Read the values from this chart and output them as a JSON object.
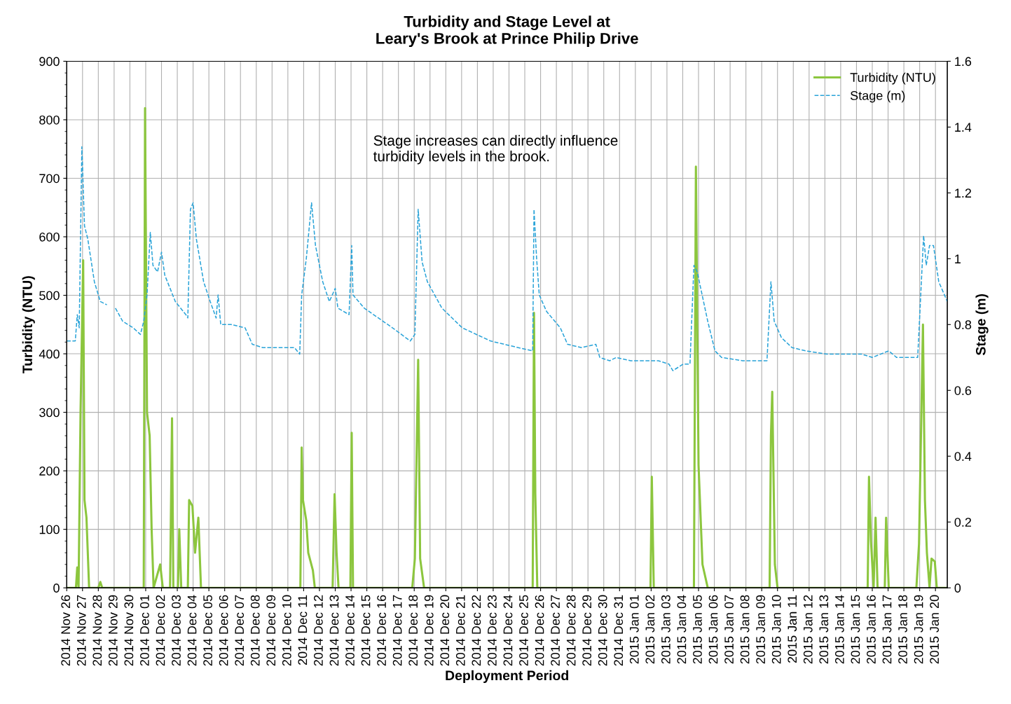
{
  "chart_data": {
    "type": "line",
    "title": "Turbidity and Stage Level at\nLeary's Brook at Prince Philip Drive",
    "xlabel": "Deployment Period",
    "ylabel": "Turbidity (NTU)",
    "y2label": "Stage (m)",
    "annotations": [
      "Stage increases can directly influence\nturbidity levels in the brook."
    ],
    "xlim": [
      "2014-11-26",
      "2015-01-20T18:00"
    ],
    "xticks": [
      {
        "value": "2014-11-26",
        "label": "2014 Nov 26"
      },
      {
        "value": "2014-11-27",
        "label": "2014 Nov 27"
      },
      {
        "value": "2014-11-28",
        "label": "2014 Nov 28"
      },
      {
        "value": "2014-11-29",
        "label": "2014 Nov 29"
      },
      {
        "value": "2014-11-30",
        "label": "2014 Nov 30"
      },
      {
        "value": "2014-12-01",
        "label": "2014 Dec 01"
      },
      {
        "value": "2014-12-02",
        "label": "2014 Dec 02"
      },
      {
        "value": "2014-12-03",
        "label": "2014 Dec 03"
      },
      {
        "value": "2014-12-04",
        "label": "2014 Dec 04"
      },
      {
        "value": "2014-12-05",
        "label": "2014 Dec 05"
      },
      {
        "value": "2014-12-06",
        "label": "2014 Dec 06"
      },
      {
        "value": "2014-12-07",
        "label": "2014 Dec 07"
      },
      {
        "value": "2014-12-08",
        "label": "2014 Dec 08"
      },
      {
        "value": "2014-12-09",
        "label": "2014 Dec 09"
      },
      {
        "value": "2014-12-10",
        "label": "2014 Dec 10"
      },
      {
        "value": "2014-12-11",
        "label": "2014 Dec 11"
      },
      {
        "value": "2014-12-12",
        "label": "2014 Dec 12"
      },
      {
        "value": "2014-12-13",
        "label": "2014 Dec 13"
      },
      {
        "value": "2014-12-14",
        "label": "2014 Dec 14"
      },
      {
        "value": "2014-12-15",
        "label": "2014 Dec 15"
      },
      {
        "value": "2014-12-16",
        "label": "2014 Dec 16"
      },
      {
        "value": "2014-12-17",
        "label": "2014 Dec 17"
      },
      {
        "value": "2014-12-18",
        "label": "2014 Dec 18"
      },
      {
        "value": "2014-12-19",
        "label": "2014 Dec 19"
      },
      {
        "value": "2014-12-20",
        "label": "2014 Dec 20"
      },
      {
        "value": "2014-12-21",
        "label": "2014 Dec 21"
      },
      {
        "value": "2014-12-22",
        "label": "2014 Dec 22"
      },
      {
        "value": "2014-12-23",
        "label": "2014 Dec 23"
      },
      {
        "value": "2014-12-24",
        "label": "2014 Dec 24"
      },
      {
        "value": "2014-12-25",
        "label": "2014 Dec 25"
      },
      {
        "value": "2014-12-26",
        "label": "2014 Dec 26"
      },
      {
        "value": "2014-12-27",
        "label": "2014 Dec 27"
      },
      {
        "value": "2014-12-28",
        "label": "2014 Dec 28"
      },
      {
        "value": "2014-12-29",
        "label": "2014 Dec 29"
      },
      {
        "value": "2014-12-30",
        "label": "2014 Dec 30"
      },
      {
        "value": "2014-12-31",
        "label": "2014 Dec 31"
      },
      {
        "value": "2015-01-01",
        "label": "2015 Jan 01"
      },
      {
        "value": "2015-01-02",
        "label": "2015 Jan 02"
      },
      {
        "value": "2015-01-03",
        "label": "2015 Jan 03"
      },
      {
        "value": "2015-01-04",
        "label": "2015 Jan 04"
      },
      {
        "value": "2015-01-05",
        "label": "2015 Jan 05"
      },
      {
        "value": "2015-01-06",
        "label": "2015 Jan 06"
      },
      {
        "value": "2015-01-07",
        "label": "2015 Jan 07"
      },
      {
        "value": "2015-01-08",
        "label": "2015 Jan 08"
      },
      {
        "value": "2015-01-09",
        "label": "2015 Jan 09"
      },
      {
        "value": "2015-01-10",
        "label": "2015 Jan 10"
      },
      {
        "value": "2015-01-11",
        "label": "2015 Jan 11"
      },
      {
        "value": "2015-01-12",
        "label": "2015 Jan 12"
      },
      {
        "value": "2015-01-13",
        "label": "2015 Jan 13"
      },
      {
        "value": "2015-01-14",
        "label": "2015 Jan 14"
      },
      {
        "value": "2015-01-15",
        "label": "2015 Jan 15"
      },
      {
        "value": "2015-01-16",
        "label": "2015 Jan 16"
      },
      {
        "value": "2015-01-17",
        "label": "2015 Jan 17"
      },
      {
        "value": "2015-01-18",
        "label": "2015 Jan 18"
      },
      {
        "value": "2015-01-19",
        "label": "2015 Jan 19"
      },
      {
        "value": "2015-01-20",
        "label": "2015 Jan 20"
      }
    ],
    "ylim": [
      0,
      900
    ],
    "yticks": [
      0,
      100,
      200,
      300,
      400,
      500,
      600,
      700,
      800,
      900
    ],
    "y2lim": [
      0,
      1.6
    ],
    "y2ticks": [
      0,
      0.2,
      0.4,
      0.6,
      0.8,
      1,
      1.2,
      1.4,
      1.6
    ],
    "grid": true,
    "legend": "top right",
    "series": [
      {
        "name": "Turbidity (NTU)",
        "color": "#8cc63e",
        "line_style": "solid",
        "x": [
          "2014-11-26T00:00",
          "2014-11-26T14:00",
          "2014-11-26T16:00",
          "2014-11-26T18:00",
          "2014-11-26T21:00",
          "2014-11-27T01:00",
          "2014-11-27T03:00",
          "2014-11-27T06:00",
          "2014-11-27T10:00",
          "2014-11-28T00:00",
          "2014-11-28T03:00",
          "2014-11-28T06:00",
          "2014-11-30T21:00",
          "2014-11-30T23:00",
          "2014-12-01T02:00",
          "2014-12-01T06:00",
          "2014-12-01T09:00",
          "2014-12-01T12:00",
          "2014-12-01T22:00",
          "2014-12-02T02:00",
          "2014-12-02T13:00",
          "2014-12-02T16:00",
          "2014-12-02T18:00",
          "2014-12-03T01:00",
          "2014-12-03T03:00",
          "2014-12-03T06:00",
          "2014-12-03T16:00",
          "2014-12-03T18:00",
          "2014-12-03T23:00",
          "2014-12-04T03:00",
          "2014-12-04T08:00",
          "2014-12-04T12:00",
          "2014-12-10T19:00",
          "2014-12-10T21:00",
          "2014-12-10T23:00",
          "2014-12-11T04:00",
          "2014-12-11T07:00",
          "2014-12-11T14:00",
          "2014-12-11T17:00",
          "2014-12-12T20:00",
          "2014-12-12T23:00",
          "2014-12-13T02:00",
          "2014-12-13T05:00",
          "2014-12-13T23:00",
          "2014-12-14T01:00",
          "2014-12-14T03:00",
          "2014-12-17T21:00",
          "2014-12-18T01:00",
          "2014-12-18T06:00",
          "2014-12-18T09:00",
          "2014-12-18T15:00",
          "2014-12-25T12:00",
          "2014-12-25T14:00",
          "2014-12-25T16:00",
          "2014-12-25T19:00",
          "2015-01-01T23:00",
          "2015-01-02T01:00",
          "2015-01-02T04:00",
          "2015-01-04T17:00",
          "2015-01-04T20:00",
          "2015-01-05T00:00",
          "2015-01-05T06:00",
          "2015-01-05T14:00",
          "2015-01-09T12:00",
          "2015-01-09T14:00",
          "2015-01-09T16:00",
          "2015-01-09T20:00",
          "2015-01-10T00:00",
          "2015-01-15T17:00",
          "2015-01-15T19:00",
          "2015-01-15T22:00",
          "2015-01-16T02:00",
          "2015-01-16T05:00",
          "2015-01-16T08:00",
          "2015-01-16T19:00",
          "2015-01-16T21:00",
          "2015-01-17T01:00",
          "2015-01-18T19:00",
          "2015-01-18T23:00",
          "2015-01-19T05:00",
          "2015-01-19T08:00",
          "2015-01-19T11:00",
          "2015-01-19T15:00",
          "2015-01-19T18:00",
          "2015-01-19T23:00",
          "2015-01-20T02:00",
          "2015-01-20T18:00"
        ],
        "values": [
          0,
          0,
          35,
          0,
          300,
          560,
          150,
          120,
          0,
          0,
          10,
          0,
          0,
          820,
          300,
          260,
          100,
          0,
          40,
          0,
          0,
          290,
          0,
          0,
          100,
          0,
          0,
          150,
          140,
          60,
          120,
          0,
          0,
          240,
          150,
          115,
          60,
          30,
          0,
          0,
          160,
          60,
          0,
          0,
          265,
          0,
          0,
          50,
          390,
          50,
          0,
          0,
          470,
          160,
          0,
          0,
          190,
          0,
          0,
          720,
          210,
          40,
          0,
          0,
          260,
          335,
          40,
          0,
          0,
          190,
          80,
          0,
          120,
          0,
          0,
          120,
          0,
          0,
          75,
          450,
          150,
          60,
          0,
          50,
          45,
          0,
          0
        ]
      },
      {
        "name": "Stage (m)",
        "color": "#29a3d8",
        "line_style": "dashed",
        "axis": "y2",
        "x": [
          "2014-11-26T00:00",
          "2014-11-26T13:00",
          "2014-11-26T16:00",
          "2014-11-26T19:00",
          "2014-11-26T23:00",
          "2014-11-27T03:00",
          "2014-11-27T08:00",
          "2014-11-27T18:00",
          "2014-11-28T03:00",
          "2014-11-28T13:00",
          "2014-11-28T20:00",
          "2014-11-29T02:00",
          "2014-11-29T13:00",
          "2014-11-30T05:00",
          "2014-11-30T16:00",
          "2014-11-30T21:00",
          "2014-12-01T02:00",
          "2014-12-01T07:00",
          "2014-12-01T11:00",
          "2014-12-01T18:00",
          "2014-12-02T00:00",
          "2014-12-02T05:00",
          "2014-12-02T21:00",
          "2014-12-03T13:00",
          "2014-12-03T16:00",
          "2014-12-03T20:00",
          "2014-12-04T00:00",
          "2014-12-04T05:00",
          "2014-12-04T16:00",
          "2014-12-05T02:00",
          "2014-12-05T11:00",
          "2014-12-05T14:00",
          "2014-12-05T18:00",
          "2014-12-06T10:00",
          "2014-12-07T07:00",
          "2014-12-07T18:00",
          "2014-12-08T10:00",
          "2014-12-10T10:00",
          "2014-12-10T18:00",
          "2014-12-10T21:00",
          "2014-12-11T04:00",
          "2014-12-11T12:00",
          "2014-12-11T18:00",
          "2014-12-12T05:00",
          "2014-12-12T15:00",
          "2014-12-13T00:00",
          "2014-12-13T04:00",
          "2014-12-13T21:00",
          "2014-12-14T01:00",
          "2014-12-14T03:00",
          "2014-12-14T20:00",
          "2014-12-16T15:00",
          "2014-12-17T18:00",
          "2014-12-18T01:00",
          "2014-12-18T06:00",
          "2014-12-18T12:00",
          "2014-12-18T20:00",
          "2014-12-19T18:00",
          "2014-12-21T01:00",
          "2014-12-22T20:00",
          "2014-12-24T14:00",
          "2014-12-25T12:00",
          "2014-12-25T14:00",
          "2014-12-25T18:00",
          "2014-12-25T22:00",
          "2014-12-26T09:00",
          "2014-12-27T06:00",
          "2014-12-27T17:00",
          "2014-12-28T14:00",
          "2014-12-29T12:00",
          "2014-12-29T18:00",
          "2014-12-30T09:00",
          "2014-12-30T19:00",
          "2014-12-31T17:00",
          "2015-01-02T11:00",
          "2015-01-03T03:00",
          "2015-01-03T09:00",
          "2015-01-04T01:00",
          "2015-01-04T11:00",
          "2015-01-04T17:00",
          "2015-01-04T22:00",
          "2015-01-05T14:00",
          "2015-01-06T01:00",
          "2015-01-06T11:00",
          "2015-01-07T19:00",
          "2015-01-09T08:00",
          "2015-01-09T14:00",
          "2015-01-09T19:00",
          "2015-01-10T06:00",
          "2015-01-10T22:00",
          "2015-01-11T19:00",
          "2015-01-13T03:00",
          "2015-01-14T00:00",
          "2015-01-15T08:00",
          "2015-01-16T00:00",
          "2015-01-17T01:00",
          "2015-01-17T13:00",
          "2015-01-18T21:00",
          "2015-01-19T06:00",
          "2015-01-19T10:00",
          "2015-01-19T15:00",
          "2015-01-19T21:00",
          "2015-01-20T05:00",
          "2015-01-20T18:00"
        ],
        "values": [
          0.75,
          0.75,
          0.83,
          0.79,
          1.34,
          1.1,
          1.06,
          0.93,
          0.87,
          0.86,
          null,
          0.85,
          0.81,
          0.79,
          0.77,
          0.81,
          0.89,
          1.08,
          0.98,
          0.96,
          1.02,
          0.95,
          0.87,
          0.83,
          0.82,
          1.15,
          1.17,
          1.06,
          0.93,
          0.87,
          0.82,
          0.89,
          0.8,
          0.8,
          0.79,
          0.74,
          0.73,
          0.73,
          0.71,
          0.89,
          1.0,
          1.17,
          1.04,
          0.93,
          0.87,
          0.91,
          0.85,
          0.83,
          1.04,
          0.89,
          0.85,
          0.79,
          0.75,
          0.77,
          1.15,
          0.99,
          0.93,
          0.85,
          0.79,
          0.75,
          0.73,
          0.72,
          1.15,
          1.0,
          0.89,
          0.84,
          0.79,
          0.74,
          0.73,
          0.74,
          0.7,
          0.69,
          0.7,
          0.69,
          0.69,
          0.68,
          0.66,
          0.68,
          0.68,
          0.98,
          0.96,
          0.81,
          0.72,
          0.7,
          0.69,
          0.69,
          0.93,
          0.81,
          0.76,
          0.73,
          0.72,
          0.71,
          0.71,
          0.71,
          0.7,
          0.72,
          0.7,
          0.7,
          1.07,
          0.98,
          1.04,
          1.04,
          0.93,
          0.87
        ]
      }
    ]
  }
}
